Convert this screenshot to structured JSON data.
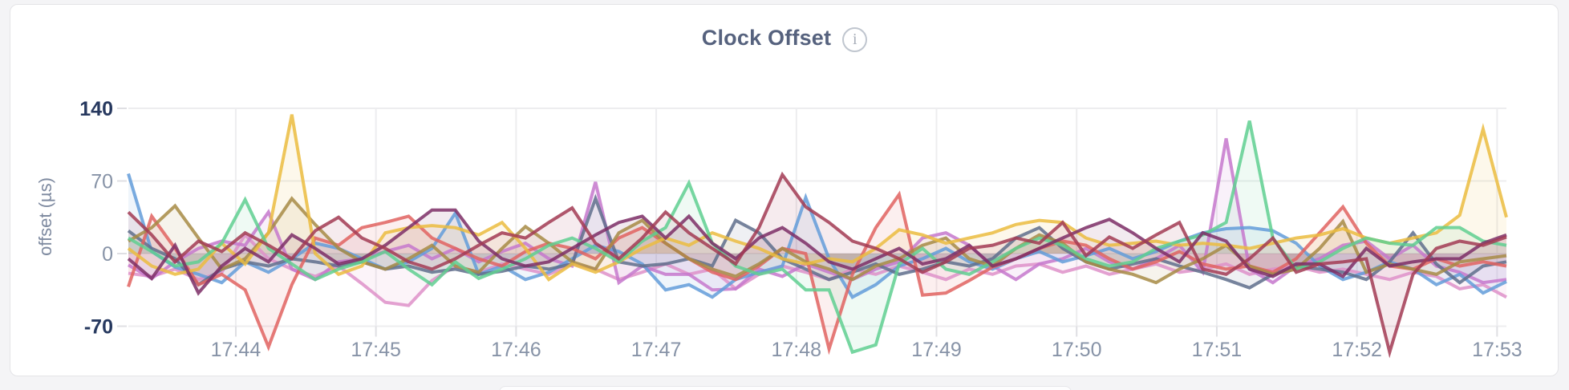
{
  "page": {
    "background": "#f4f4f6"
  },
  "header": {
    "title": "Clock Offset",
    "info_icon_glyph": "i"
  },
  "chart_data": {
    "type": "line",
    "title": "Clock Offset",
    "xlabel": "",
    "ylabel": "offset (µs)",
    "ylim": [
      -70,
      140
    ],
    "grid": true,
    "legend": "none",
    "x_span_s": 590,
    "sample_interval_s": 10,
    "x_ticks": [
      {
        "label": "17:44",
        "t": 46
      },
      {
        "label": "17:45",
        "t": 106
      },
      {
        "label": "17:46",
        "t": 166
      },
      {
        "label": "17:47",
        "t": 226
      },
      {
        "label": "17:48",
        "t": 286
      },
      {
        "label": "17:49",
        "t": 346
      },
      {
        "label": "17:50",
        "t": 406
      },
      {
        "label": "17:51",
        "t": 466
      },
      {
        "label": "17:52",
        "t": 526
      },
      {
        "label": "17:53",
        "t": 586
      }
    ],
    "y_ticks": [
      {
        "label": "140",
        "v": 140,
        "strong": true
      },
      {
        "label": "70",
        "v": 70,
        "strong": false
      },
      {
        "label": "0",
        "v": 0,
        "strong": false
      },
      {
        "label": "-70",
        "v": -70,
        "strong": true
      }
    ],
    "colors": {
      "grid": "#ededef",
      "tick": "#dfdfe3",
      "axis_label_strong": "#27395f",
      "axis_label_normal": "#8793a7",
      "title": "#56627e"
    },
    "series": [
      {
        "name": "series-pink",
        "color": "#de90c9",
        "values": [
          -19,
          -22,
          -15,
          -25,
          -18,
          18,
          -5,
          -15,
          -22,
          -12,
          -29,
          -47,
          -50,
          -26,
          -12,
          -18,
          -10,
          -15,
          -20,
          -10,
          -15,
          -25,
          -18,
          -10,
          -20,
          -15,
          -34,
          -20,
          -12,
          -18,
          -25,
          -15,
          -20,
          -12,
          -18,
          -25,
          -15,
          -20,
          -12,
          -10,
          -18,
          -12,
          -20,
          -15,
          -10,
          -18,
          -15,
          -10,
          -20,
          -15,
          -12,
          -18,
          -15,
          -20,
          -25,
          -18,
          -22,
          -34,
          -30,
          -42
        ]
      },
      {
        "name": "series-violet",
        "color": "#c678cc",
        "values": [
          -11,
          -24,
          -8,
          5,
          12,
          8,
          40,
          -15,
          -25,
          -8,
          -5,
          2,
          8,
          -5,
          5,
          -8,
          2,
          10,
          -5,
          -12,
          69,
          -28,
          -12,
          -20,
          -20,
          -35,
          -34,
          -15,
          -22,
          -10,
          -18,
          -25,
          -15,
          -8,
          15,
          20,
          8,
          -12,
          -25,
          -10,
          -5,
          5,
          -8,
          -15,
          -5,
          8,
          -18,
          111,
          -15,
          -28,
          -12,
          -5,
          8,
          12,
          -5,
          8,
          -12,
          -18,
          -28,
          -25
        ]
      },
      {
        "name": "series-blue",
        "color": "#639cd9",
        "values": [
          77,
          2,
          -13,
          -20,
          -28,
          -8,
          -18,
          -5,
          10,
          5,
          -5,
          -15,
          -8,
          5,
          39,
          -20,
          -12,
          -25,
          -18,
          -5,
          8,
          2,
          -10,
          -35,
          -30,
          -42,
          -25,
          -18,
          -12,
          54,
          -5,
          -42,
          -30,
          -12,
          -5,
          5,
          -8,
          -15,
          -5,
          2,
          -8,
          -2,
          5,
          -5,
          2,
          12,
          20,
          24,
          25,
          22,
          10,
          -12,
          -25,
          -18,
          -8,
          -15,
          -30,
          -20,
          -38,
          -27
        ]
      },
      {
        "name": "series-slate",
        "color": "#5f6e8c",
        "values": [
          22,
          5,
          -5,
          -30,
          -15,
          -8,
          -12,
          -5,
          -8,
          -12,
          -8,
          -15,
          -12,
          -18,
          -15,
          -20,
          -17,
          -12,
          -15,
          -10,
          53,
          -8,
          -12,
          -10,
          -5,
          -12,
          32,
          20,
          -5,
          -15,
          -25,
          -18,
          -10,
          -20,
          -15,
          -8,
          -12,
          -5,
          15,
          25,
          5,
          -8,
          -15,
          -10,
          -5,
          -12,
          -18,
          -25,
          -33,
          -20,
          -12,
          -15,
          -18,
          -25,
          -8,
          20,
          -10,
          -28,
          -12,
          -8
        ]
      },
      {
        "name": "series-red",
        "color": "#e06360",
        "values": [
          -32,
          36,
          5,
          -30,
          -20,
          -35,
          -90,
          -30,
          15,
          8,
          25,
          30,
          36,
          15,
          5,
          -5,
          -12,
          2,
          10,
          5,
          -5,
          15,
          25,
          10,
          -5,
          -18,
          -25,
          -12,
          5,
          0,
          -92,
          -20,
          25,
          57,
          -40,
          -38,
          -26,
          -13,
          -5,
          5,
          12,
          8,
          -5,
          -15,
          -8,
          2,
          -10,
          -15,
          -12,
          -18,
          -5,
          20,
          45,
          10,
          -12,
          -15,
          -5,
          -12,
          -8,
          -12
        ]
      },
      {
        "name": "series-olive",
        "color": "#a78b45",
        "values": [
          12,
          25,
          46,
          15,
          -15,
          -5,
          20,
          53,
          28,
          5,
          -8,
          -15,
          -5,
          8,
          -12,
          -18,
          5,
          26,
          10,
          -8,
          -15,
          20,
          32,
          10,
          -5,
          -15,
          -22,
          -10,
          5,
          -8,
          -15,
          -25,
          -12,
          -5,
          8,
          15,
          -5,
          -12,
          5,
          18,
          10,
          -8,
          -15,
          -20,
          -28,
          -15,
          -5,
          8,
          -12,
          -20,
          -15,
          5,
          31,
          -18,
          -10,
          -15,
          -20,
          -8,
          -5,
          -2
        ]
      },
      {
        "name": "series-gold",
        "color": "#ebbc3f",
        "values": [
          5,
          -12,
          -20,
          -15,
          10,
          -10,
          20,
          134,
          0,
          -20,
          -12,
          20,
          25,
          27,
          25,
          18,
          30,
          5,
          -25,
          -10,
          -18,
          -8,
          5,
          15,
          8,
          20,
          12,
          5,
          -5,
          -10,
          -5,
          -8,
          5,
          23,
          18,
          10,
          15,
          20,
          28,
          32,
          30,
          15,
          8,
          10,
          12,
          8,
          10,
          8,
          5,
          10,
          15,
          18,
          24,
          15,
          10,
          15,
          20,
          37,
          120,
          35
        ]
      },
      {
        "name": "series-green",
        "color": "#5fcf90",
        "values": [
          15,
          2,
          -12,
          -8,
          10,
          52,
          5,
          -10,
          -25,
          -15,
          -8,
          2,
          -15,
          -30,
          -8,
          -24,
          -15,
          -5,
          8,
          15,
          5,
          -8,
          12,
          25,
          68,
          10,
          -12,
          -20,
          -15,
          -35,
          -35,
          -95,
          -88,
          -10,
          5,
          -15,
          -20,
          -8,
          5,
          15,
          8,
          -5,
          -12,
          -8,
          5,
          12,
          18,
          30,
          128,
          15,
          -15,
          -8,
          5,
          15,
          10,
          8,
          25,
          25,
          12,
          8
        ]
      },
      {
        "name": "series-plum",
        "color": "#7d2e66",
        "values": [
          -5,
          -24,
          8,
          -38,
          -12,
          5,
          -8,
          18,
          5,
          -10,
          -5,
          8,
          25,
          42,
          42,
          12,
          -5,
          -12,
          -8,
          5,
          18,
          30,
          36,
          15,
          36,
          10,
          -5,
          15,
          25,
          10,
          -8,
          -15,
          -5,
          5,
          -10,
          -5,
          8,
          -12,
          -5,
          5,
          15,
          25,
          33,
          20,
          5,
          -8,
          20,
          12,
          -15,
          -22,
          -10,
          -10,
          -22,
          5,
          -12,
          -8,
          -5,
          -5,
          10,
          18
        ]
      },
      {
        "name": "series-maroon",
        "color": "#a23b54",
        "values": [
          40,
          18,
          -8,
          12,
          2,
          20,
          8,
          -5,
          22,
          35,
          15,
          5,
          -8,
          -15,
          -5,
          8,
          20,
          15,
          30,
          44,
          10,
          -5,
          15,
          40,
          20,
          5,
          -10,
          25,
          76,
          45,
          30,
          12,
          5,
          -5,
          -18,
          -8,
          5,
          8,
          15,
          10,
          30,
          -2,
          16,
          5,
          18,
          30,
          -15,
          -20,
          -5,
          15,
          -18,
          -10,
          -8,
          -5,
          -95,
          -20,
          5,
          12,
          8,
          16
        ]
      }
    ]
  }
}
